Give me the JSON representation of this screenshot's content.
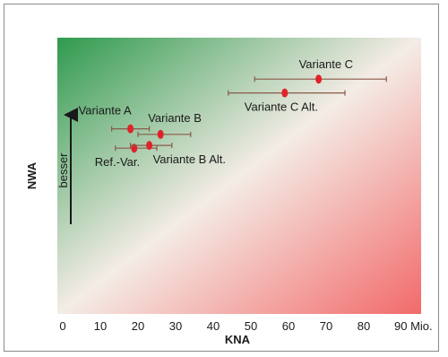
{
  "chart_data": {
    "type": "scatter",
    "xlabel": "KNA",
    "ylabel": "NWA",
    "xlim": [
      0,
      90
    ],
    "x_ticks": [
      "0",
      "10",
      "20",
      "30",
      "40",
      "50",
      "60",
      "70",
      "80",
      "90 Mio."
    ],
    "y_arrow_label": "besser",
    "colors": {
      "point": "#e0232a",
      "errorbar": "#8a5a4a",
      "gradient_top_left": "#2f9a4e",
      "gradient_bottom_right": "#f26a6a"
    },
    "points": [
      {
        "name": "Variante C",
        "x": 68,
        "y": 0.85,
        "x_err": [
          51,
          86
        ]
      },
      {
        "name": "Variante C Alt.",
        "x": 59,
        "y": 0.8,
        "x_err": [
          44,
          75
        ]
      },
      {
        "name": "Variante A",
        "x": 18,
        "y": 0.67,
        "x_err": [
          13,
          23
        ]
      },
      {
        "name": "Variante B",
        "x": 26,
        "y": 0.65,
        "x_err": [
          20,
          34
        ]
      },
      {
        "name": "Ref.-Var.",
        "x": 19,
        "y": 0.6,
        "x_err": [
          14,
          25
        ]
      },
      {
        "name": "Variante B Alt.",
        "x": 23,
        "y": 0.61,
        "x_err": [
          18,
          29
        ]
      }
    ]
  }
}
